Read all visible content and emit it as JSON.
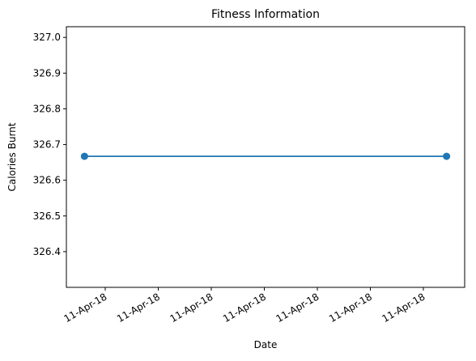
{
  "chart_data": {
    "type": "line",
    "title": "Fitness Information",
    "xlabel": "Date",
    "ylabel": "Calories Burnt",
    "x": [
      "2018-04-11",
      "2018-04-11"
    ],
    "series": [
      {
        "values": [
          326.667,
          326.667
        ],
        "color": "#1f77b4",
        "marker": "circle"
      }
    ],
    "ylim": [
      326.3,
      327.03
    ],
    "yticks": [
      "326.4",
      "326.5",
      "326.6",
      "326.7",
      "326.8",
      "326.9",
      "327.0"
    ],
    "xticks": [
      "11-Apr-18",
      "11-Apr-18",
      "11-Apr-18",
      "11-Apr-18",
      "11-Apr-18",
      "11-Apr-18",
      "11-Apr-18"
    ],
    "grid": false,
    "legend": "none"
  }
}
